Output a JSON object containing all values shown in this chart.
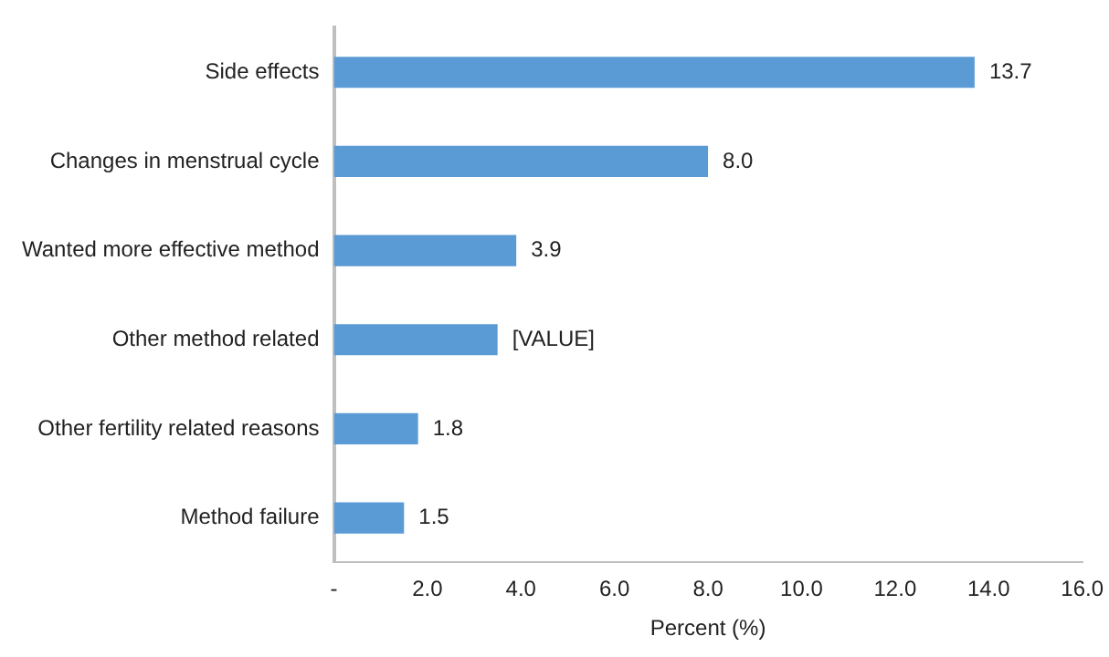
{
  "chart_data": {
    "type": "bar",
    "orientation": "horizontal",
    "xlabel": "Percent (%)",
    "categories": [
      "Side effects",
      "Changes in menstrual cycle",
      "Wanted more effective method",
      "Other method related",
      "Other fertility related reasons",
      "Method failure"
    ],
    "values": [
      13.7,
      8.0,
      3.9,
      3.5,
      1.8,
      1.5
    ],
    "value_labels": [
      "13.7",
      "8.0",
      "3.9",
      "[VALUE]",
      "1.8",
      "1.5"
    ],
    "color": "#5b9bd5",
    "xlim": [
      0,
      16
    ],
    "xticks": [
      {
        "value": 0,
        "label": "-"
      },
      {
        "value": 2,
        "label": "2.0"
      },
      {
        "value": 4,
        "label": "4.0"
      },
      {
        "value": 6,
        "label": "6.0"
      },
      {
        "value": 8,
        "label": "8.0"
      },
      {
        "value": 10,
        "label": "10.0"
      },
      {
        "value": 12,
        "label": "12.0"
      },
      {
        "value": 14,
        "label": "14.0"
      },
      {
        "value": 16,
        "label": "16.0"
      }
    ],
    "grid": false,
    "legend": false
  }
}
